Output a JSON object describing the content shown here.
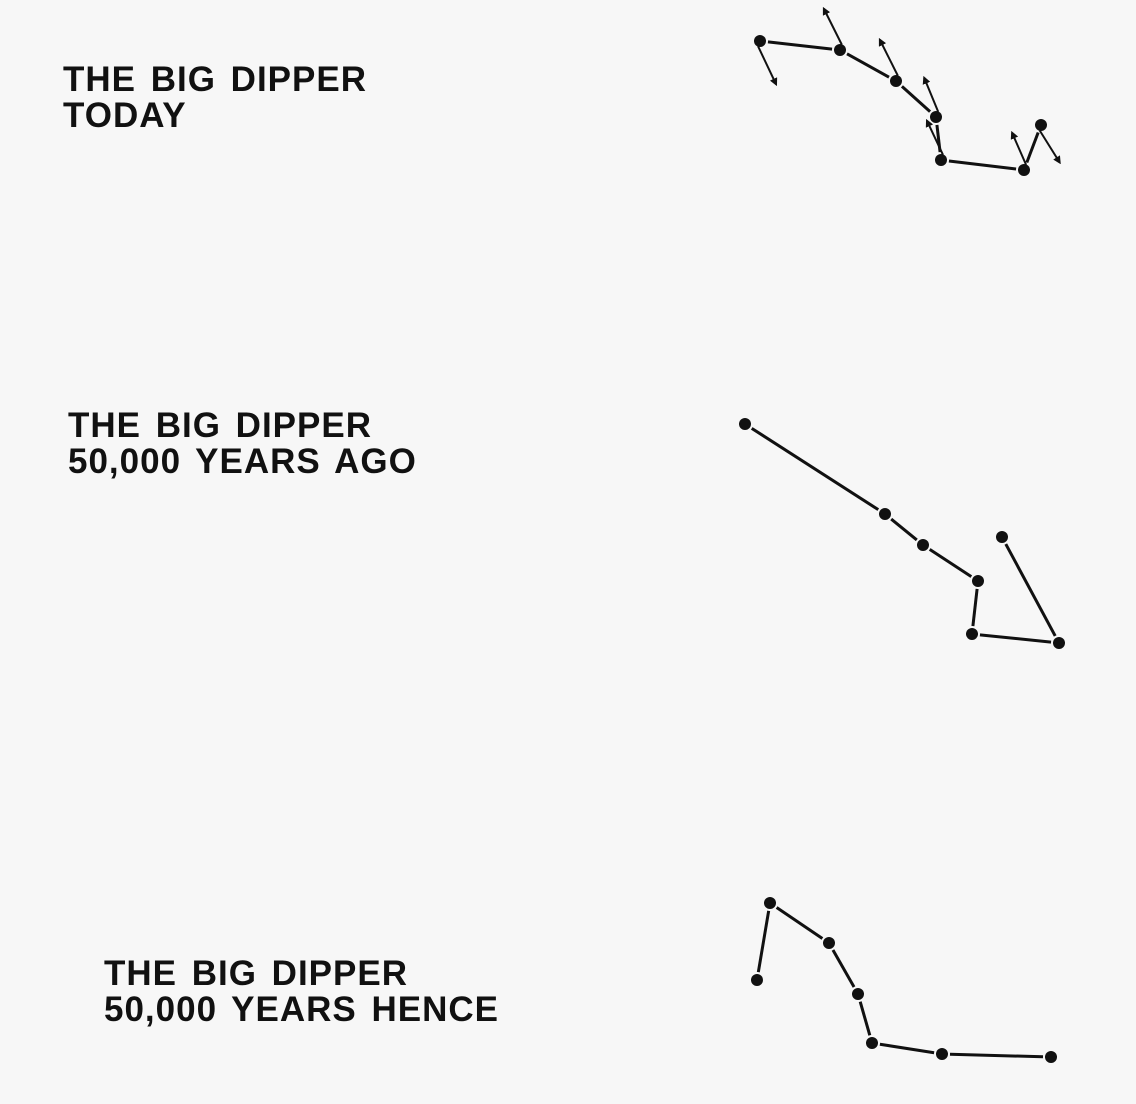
{
  "panels": [
    {
      "id": "today",
      "title_line1": "THE BIG DIPPER",
      "title_line2": "TODAY"
    },
    {
      "id": "ago",
      "title_line1": "THE BIG DIPPER",
      "title_line2": "50,000 YEARS AGO"
    },
    {
      "id": "hence",
      "title_line1": "THE BIG DIPPER",
      "title_line2": "50,000 YEARS HENCE"
    }
  ],
  "colors": {
    "background": "#f7f7f7",
    "ink": "#111111"
  }
}
